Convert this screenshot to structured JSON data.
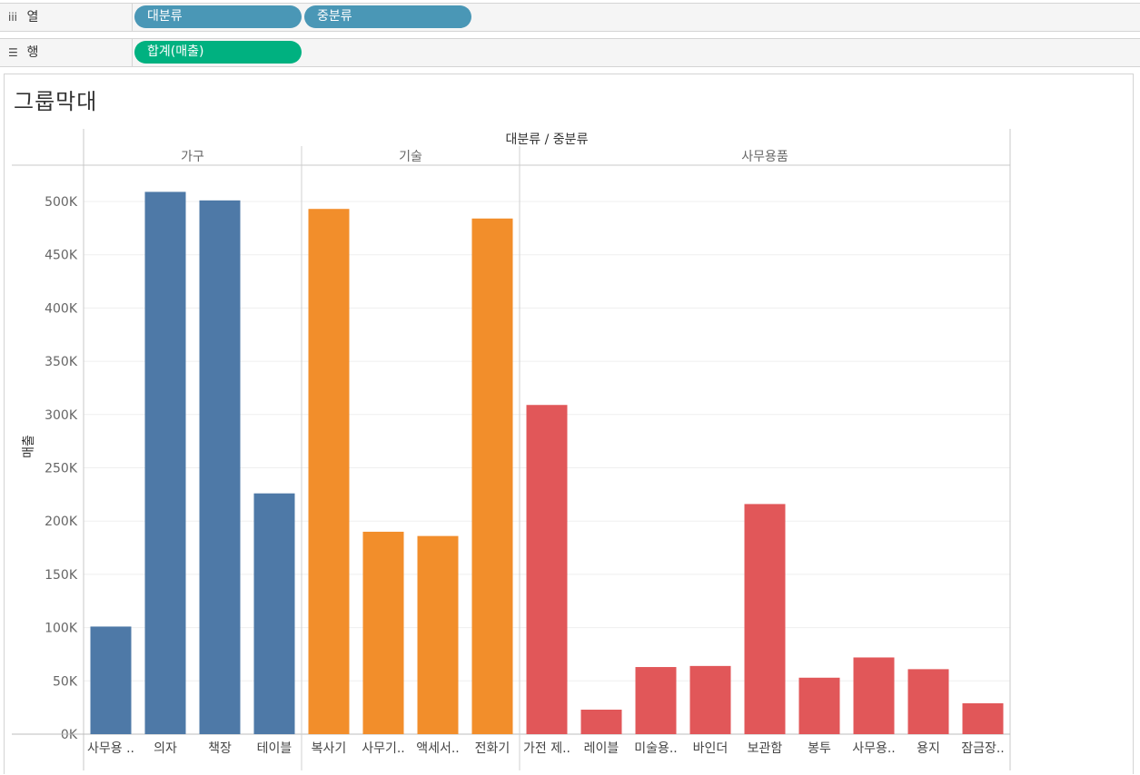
{
  "shelves": {
    "columns": {
      "icon": "iii",
      "label": "열",
      "pills": [
        "대분류",
        "중분류"
      ]
    },
    "rows": {
      "icon": "☰",
      "label": "행",
      "pills": [
        "합계(매출)"
      ]
    }
  },
  "sheet_title": "그룹막대",
  "colors": {
    "가구": "#4e79a7",
    "기술": "#f28e2b",
    "사무용품": "#e15759",
    "pill_dimension": "#4a97b6",
    "pill_measure": "#00b180"
  },
  "chart_data": {
    "type": "bar",
    "title": "",
    "header_label": "대분류 / 중분류",
    "xlabel": "",
    "ylabel": "매출",
    "ylim": [
      0,
      520000
    ],
    "yticks": [
      0,
      50000,
      100000,
      150000,
      200000,
      250000,
      300000,
      350000,
      400000,
      450000,
      500000
    ],
    "ytick_labels": [
      "0K",
      "50K",
      "100K",
      "150K",
      "200K",
      "250K",
      "300K",
      "350K",
      "400K",
      "450K",
      "500K"
    ],
    "grid": true,
    "groups": [
      {
        "name": "가구",
        "categories": [
          "사무용 ..",
          "의자",
          "책장",
          "테이블"
        ],
        "values": [
          101000,
          509000,
          501000,
          226000
        ]
      },
      {
        "name": "기술",
        "categories": [
          "복사기",
          "사무기..",
          "액세서..",
          "전화기"
        ],
        "values": [
          493000,
          190000,
          186000,
          484000
        ]
      },
      {
        "name": "사무용품",
        "categories": [
          "가전 제..",
          "레이블",
          "미술용..",
          "바인더",
          "보관함",
          "봉투",
          "사무용..",
          "용지",
          "잠금장.."
        ],
        "values": [
          309000,
          23000,
          63000,
          64000,
          216000,
          53000,
          72000,
          61000,
          29000
        ]
      }
    ]
  }
}
